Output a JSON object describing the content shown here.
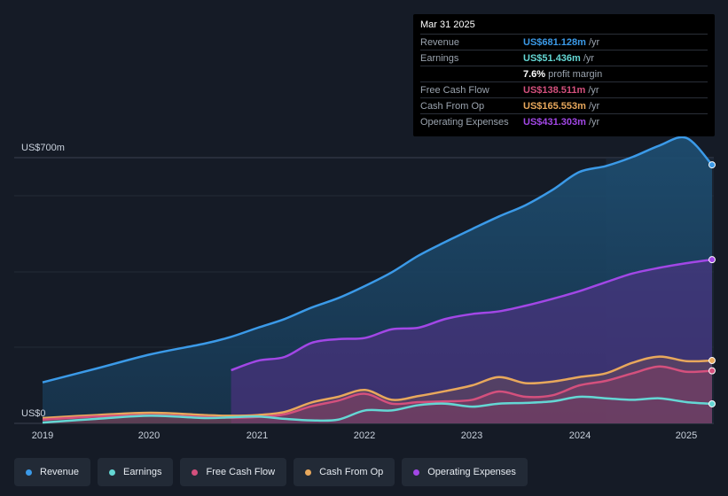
{
  "chart_data": {
    "type": "area",
    "title": "",
    "y_axis": {
      "top_label": "US$700m",
      "bottom_label": "US$0",
      "ylim": [
        0,
        700
      ]
    },
    "x_tick_labels": [
      "2019",
      "2020",
      "2021",
      "2022",
      "2023",
      "2024",
      "2025"
    ],
    "xlim": [
      2018.99,
      2025.24
    ],
    "forecast_start": 2024.25,
    "series": [
      {
        "name": "Revenue",
        "color": "#3b9ae8",
        "fill": true,
        "points": [
          [
            2018.99,
            108
          ],
          [
            2019.5,
            145
          ],
          [
            2020.0,
            182
          ],
          [
            2020.5,
            210
          ],
          [
            2020.75,
            228
          ],
          [
            2021.0,
            252
          ],
          [
            2021.25,
            275
          ],
          [
            2021.5,
            305
          ],
          [
            2021.75,
            330
          ],
          [
            2022.0,
            362
          ],
          [
            2022.25,
            398
          ],
          [
            2022.5,
            442
          ],
          [
            2022.75,
            478
          ],
          [
            2023.0,
            512
          ],
          [
            2023.25,
            545
          ],
          [
            2023.5,
            575
          ],
          [
            2023.75,
            615
          ],
          [
            2024.0,
            662
          ],
          [
            2024.25,
            678
          ],
          [
            2024.5,
            702
          ],
          [
            2024.75,
            732
          ],
          [
            2025.0,
            752
          ],
          [
            2025.24,
            681.128
          ]
        ]
      },
      {
        "name": "Operating Expenses",
        "color": "#a247e6",
        "fill": true,
        "points": [
          [
            2020.75,
            140
          ],
          [
            2021.0,
            165
          ],
          [
            2021.25,
            175
          ],
          [
            2021.5,
            212
          ],
          [
            2021.75,
            222
          ],
          [
            2022.0,
            225
          ],
          [
            2022.25,
            248
          ],
          [
            2022.5,
            252
          ],
          [
            2022.75,
            275
          ],
          [
            2023.0,
            288
          ],
          [
            2023.25,
            295
          ],
          [
            2023.5,
            310
          ],
          [
            2023.75,
            328
          ],
          [
            2024.0,
            348
          ],
          [
            2024.25,
            372
          ],
          [
            2024.5,
            395
          ],
          [
            2024.75,
            410
          ],
          [
            2025.0,
            422
          ],
          [
            2025.24,
            431.303
          ]
        ]
      },
      {
        "name": "Cash From Op",
        "color": "#e8a85c",
        "fill": true,
        "points": [
          [
            2018.99,
            14
          ],
          [
            2019.5,
            22
          ],
          [
            2020.0,
            28
          ],
          [
            2020.5,
            22
          ],
          [
            2020.75,
            20
          ],
          [
            2021.0,
            22
          ],
          [
            2021.25,
            30
          ],
          [
            2021.5,
            55
          ],
          [
            2021.75,
            70
          ],
          [
            2022.0,
            88
          ],
          [
            2022.25,
            62
          ],
          [
            2022.5,
            72
          ],
          [
            2022.75,
            85
          ],
          [
            2023.0,
            100
          ],
          [
            2023.25,
            122
          ],
          [
            2023.5,
            106
          ],
          [
            2023.75,
            110
          ],
          [
            2024.0,
            122
          ],
          [
            2024.25,
            132
          ],
          [
            2024.5,
            160
          ],
          [
            2024.75,
            176
          ],
          [
            2025.0,
            164
          ],
          [
            2025.24,
            165.553
          ]
        ]
      },
      {
        "name": "Free Cash Flow",
        "color": "#d4507d",
        "fill": true,
        "points": [
          [
            2018.99,
            10
          ],
          [
            2019.5,
            18
          ],
          [
            2020.0,
            22
          ],
          [
            2020.5,
            17
          ],
          [
            2020.75,
            15
          ],
          [
            2021.0,
            17
          ],
          [
            2021.25,
            24
          ],
          [
            2021.5,
            45
          ],
          [
            2021.75,
            60
          ],
          [
            2022.0,
            78
          ],
          [
            2022.25,
            52
          ],
          [
            2022.5,
            56
          ],
          [
            2022.75,
            58
          ],
          [
            2023.0,
            62
          ],
          [
            2023.25,
            84
          ],
          [
            2023.5,
            70
          ],
          [
            2023.75,
            74
          ],
          [
            2024.0,
            100
          ],
          [
            2024.25,
            112
          ],
          [
            2024.5,
            132
          ],
          [
            2024.75,
            150
          ],
          [
            2025.0,
            136
          ],
          [
            2025.24,
            138.511
          ]
        ]
      },
      {
        "name": "Earnings",
        "color": "#64d7d4",
        "fill": false,
        "points": [
          [
            2018.99,
            2
          ],
          [
            2019.5,
            12
          ],
          [
            2020.0,
            20
          ],
          [
            2020.5,
            14
          ],
          [
            2020.75,
            16
          ],
          [
            2021.0,
            18
          ],
          [
            2021.25,
            12
          ],
          [
            2021.5,
            8
          ],
          [
            2021.75,
            10
          ],
          [
            2022.0,
            34
          ],
          [
            2022.25,
            34
          ],
          [
            2022.5,
            48
          ],
          [
            2022.75,
            52
          ],
          [
            2023.0,
            44
          ],
          [
            2023.25,
            52
          ],
          [
            2023.5,
            54
          ],
          [
            2023.75,
            58
          ],
          [
            2024.0,
            70
          ],
          [
            2024.25,
            66
          ],
          [
            2024.5,
            62
          ],
          [
            2024.75,
            66
          ],
          [
            2025.0,
            56
          ],
          [
            2025.24,
            51.436
          ]
        ]
      }
    ]
  },
  "tooltip": {
    "date": "Mar 31 2025",
    "rows": [
      {
        "label": "Revenue",
        "value": "US$681.128m",
        "unit": "/yr",
        "color": "#3b9ae8"
      },
      {
        "label": "Earnings",
        "value": "US$51.436m",
        "unit": "/yr",
        "color": "#64d7d4"
      },
      {
        "label": "",
        "value": "7.6%",
        "unit": "profit margin",
        "color": "#ffffff"
      },
      {
        "label": "Free Cash Flow",
        "value": "US$138.511m",
        "unit": "/yr",
        "color": "#d4507d"
      },
      {
        "label": "Cash From Op",
        "value": "US$165.553m",
        "unit": "/yr",
        "color": "#e8a85c"
      },
      {
        "label": "Operating Expenses",
        "value": "US$431.303m",
        "unit": "/yr",
        "color": "#a247e6"
      }
    ]
  },
  "legend": [
    {
      "label": "Revenue",
      "color": "#3b9ae8"
    },
    {
      "label": "Earnings",
      "color": "#64d7d4"
    },
    {
      "label": "Free Cash Flow",
      "color": "#d4507d"
    },
    {
      "label": "Cash From Op",
      "color": "#e8a85c"
    },
    {
      "label": "Operating Expenses",
      "color": "#a247e6"
    }
  ]
}
